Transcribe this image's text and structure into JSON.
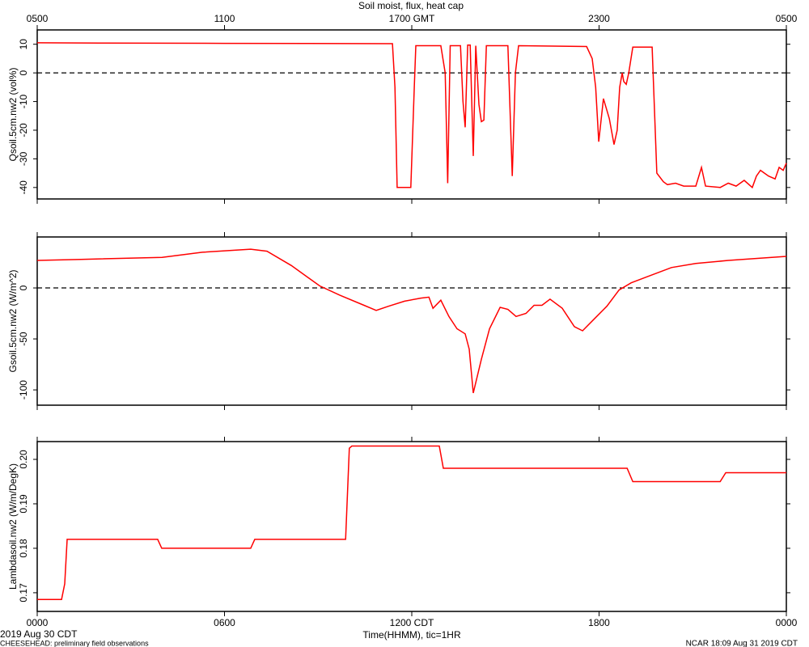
{
  "title": "Soil moist, flux, heat cap",
  "footer": {
    "date": "2019 Aug 30 CDT",
    "project": "CHEESEHEAD: preliminary field observations",
    "stamp": "NCAR 18:09 Aug 31 2019 CDT"
  },
  "chart_data": [
    {
      "type": "line",
      "ylabel": "Qsoil.5cm.nw2 (vol%)",
      "xlim": [
        0,
        24
      ],
      "ylim": [
        -44,
        15
      ],
      "yticks": [
        10,
        0,
        -10,
        -20,
        -30,
        -40
      ],
      "hlines": [
        0
      ],
      "color": "#ff0000",
      "x2ticks": [
        {
          "value": 0,
          "label": "0500"
        },
        {
          "value": 6,
          "label": "1100"
        },
        {
          "value": 12,
          "label": "1700 GMT"
        },
        {
          "value": 18,
          "label": "2300"
        },
        {
          "value": 24,
          "label": "0500"
        }
      ],
      "x": [
        0,
        2,
        6,
        11.38,
        11.46,
        11.53,
        11.97,
        12.08,
        12.13,
        12.93,
        13.07,
        13.15,
        13.23,
        13.56,
        13.64,
        13.71,
        13.79,
        13.87,
        13.97,
        14.05,
        14.15,
        14.23,
        14.31,
        14.39,
        15.08,
        15.22,
        15.32,
        15.42,
        17.6,
        17.78,
        17.89,
        17.99,
        18.14,
        18.25,
        18.33,
        18.48,
        18.58,
        18.66,
        18.74,
        18.79,
        18.87,
        18.95,
        19.08,
        19.7,
        19.85,
        20.06,
        20.19,
        20.45,
        20.71,
        21.1,
        21.28,
        21.41,
        21.88,
        22.14,
        22.39,
        22.65,
        22.91,
        23.04,
        23.17,
        23.43,
        23.64,
        23.77,
        23.9,
        24
      ],
      "values": [
        10.5,
        10.4,
        10.3,
        10.2,
        -5,
        -40,
        -40,
        -5,
        9.5,
        9.5,
        0,
        -38.5,
        9.5,
        9.5,
        -10,
        -19,
        9.7,
        9.7,
        -29,
        9.5,
        -11,
        -17,
        -16.5,
        9.5,
        9.5,
        -36,
        0,
        9.5,
        9.2,
        5,
        -5,
        -24,
        -9,
        -13,
        -16,
        -25,
        -20,
        -5,
        0,
        -3,
        -4,
        0,
        9,
        9,
        -35,
        -38,
        -39,
        -38.5,
        -39.5,
        -39.5,
        -33,
        -39.5,
        -40,
        -38.5,
        -39.5,
        -37.5,
        -40,
        -36,
        -34,
        -36,
        -37,
        -33,
        -34,
        -31.5
      ]
    },
    {
      "type": "line",
      "ylabel": "Gsoil.5cm.nw2 (W/m^2)",
      "xlim": [
        0,
        24
      ],
      "ylim": [
        -115,
        50
      ],
      "yticks": [
        0,
        -50,
        -100
      ],
      "hlines": [
        0
      ],
      "color": "#ff0000",
      "x": [
        0,
        1.4,
        4,
        5.29,
        6.84,
        7.36,
        8.14,
        9.05,
        9.69,
        10.47,
        10.86,
        11.25,
        11.77,
        12.29,
        12.55,
        12.68,
        12.93,
        13.19,
        13.45,
        13.71,
        13.84,
        13.97,
        14.23,
        14.49,
        14.83,
        15.08,
        15.34,
        15.66,
        15.92,
        16.17,
        16.43,
        16.82,
        17.21,
        17.47,
        17.86,
        18.25,
        18.64,
        19.03,
        19.54,
        20.32,
        21.1,
        22.14,
        24
      ],
      "values": [
        27,
        28,
        30,
        35,
        38,
        36,
        22,
        2,
        -7,
        -17,
        -22,
        -18,
        -13,
        -10,
        -9,
        -20,
        -12,
        -28,
        -40,
        -45,
        -60,
        -103,
        -70,
        -40,
        -19,
        -21,
        -28,
        -25,
        -17,
        -17,
        -11,
        -20,
        -38,
        -42,
        -30,
        -18,
        -2,
        5,
        11,
        20,
        24,
        27,
        31
      ]
    },
    {
      "type": "line",
      "ylabel": "Lambdasoil.nw2 (W/m/DegK)",
      "xlabel": "Time(HHMM), tic=1HR",
      "xlim": [
        0,
        24
      ],
      "ylim": [
        0.1658,
        0.204
      ],
      "yticks": [
        {
          "value": 0.2,
          "label": "0.20"
        },
        0.19,
        0.18,
        0.17
      ],
      "color": "#ff0000",
      "xticks": [
        {
          "value": 0,
          "label": "0000"
        },
        {
          "value": 6,
          "label": "0600"
        },
        {
          "value": 12,
          "label": "1200 CDT"
        },
        {
          "value": 18,
          "label": "1800"
        },
        {
          "value": 24,
          "label": "0000"
        }
      ],
      "x": [
        0,
        0.78,
        0.88,
        0.96,
        3.86,
        3.99,
        6.84,
        6.97,
        9.88,
        10.0,
        10.08,
        12.88,
        13.01,
        18.9,
        19.08,
        21.88,
        22.06,
        24
      ],
      "values": [
        0.1685,
        0.1685,
        0.172,
        0.182,
        0.182,
        0.18,
        0.18,
        0.182,
        0.182,
        0.2025,
        0.203,
        0.203,
        0.198,
        0.198,
        0.195,
        0.195,
        0.197,
        0.197
      ]
    }
  ]
}
